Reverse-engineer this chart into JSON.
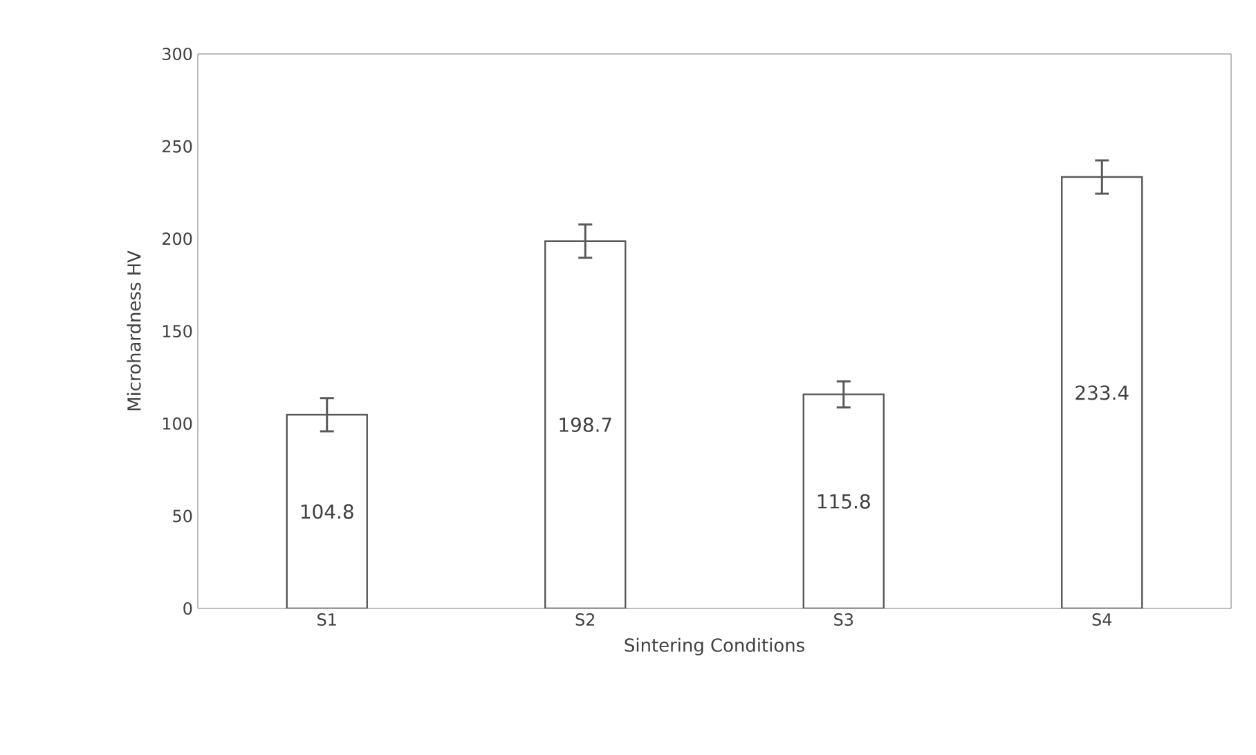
{
  "chart_data": {
    "type": "bar",
    "xlabel": "Sintering Conditions",
    "ylabel": "Microhardness HV",
    "categories": [
      "S1",
      "S2",
      "S3",
      "S4"
    ],
    "values": [
      104.8,
      198.7,
      115.8,
      233.4
    ],
    "errors": [
      9,
      9,
      7,
      9
    ],
    "color": "#ffffff",
    "ylim": [
      0,
      300
    ],
    "yticks": [
      0,
      50,
      100,
      150,
      200,
      250,
      300
    ],
    "data_labels": true,
    "grid": false
  }
}
